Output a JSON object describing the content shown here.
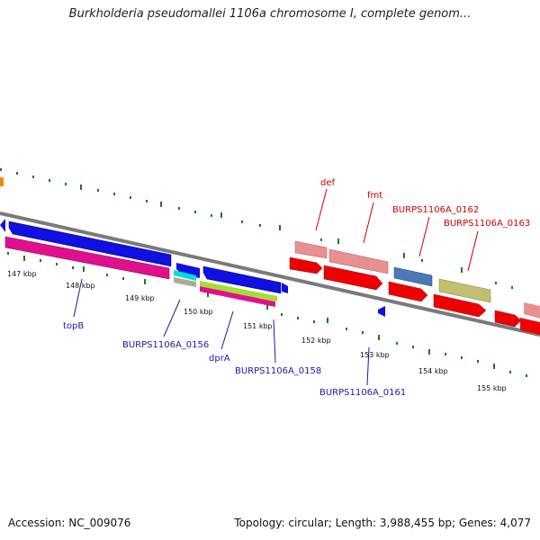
{
  "title": "Burkholderia pseudomallei 1106a chromosome I, complete genom...",
  "footer": {
    "accession": "Accession: NC_009076",
    "summary": "Topology: circular; Length: 3,988,455 bp; Genes: 4,077"
  },
  "scale_labels": [
    "147 kbp",
    "148 kbp",
    "149 kbp",
    "150 kbp",
    "151 kbp",
    "152 kbp",
    "153 kbp",
    "154 kbp",
    "155 kbp"
  ],
  "genes_forward": [
    "def",
    "fmt",
    "BURPS1106A_0162",
    "BURPS1106A_0163"
  ],
  "genes_reverse": [
    "topB",
    "BURPS1106A_0156",
    "dprA",
    "BURPS1106A_0158",
    "BURPS1106A_0161"
  ],
  "colors": {
    "tick": "#1a7a1a",
    "backbone": "#7a7a7a",
    "forward_label": "#cc0000",
    "reverse_label": "#1a1aa6"
  }
}
